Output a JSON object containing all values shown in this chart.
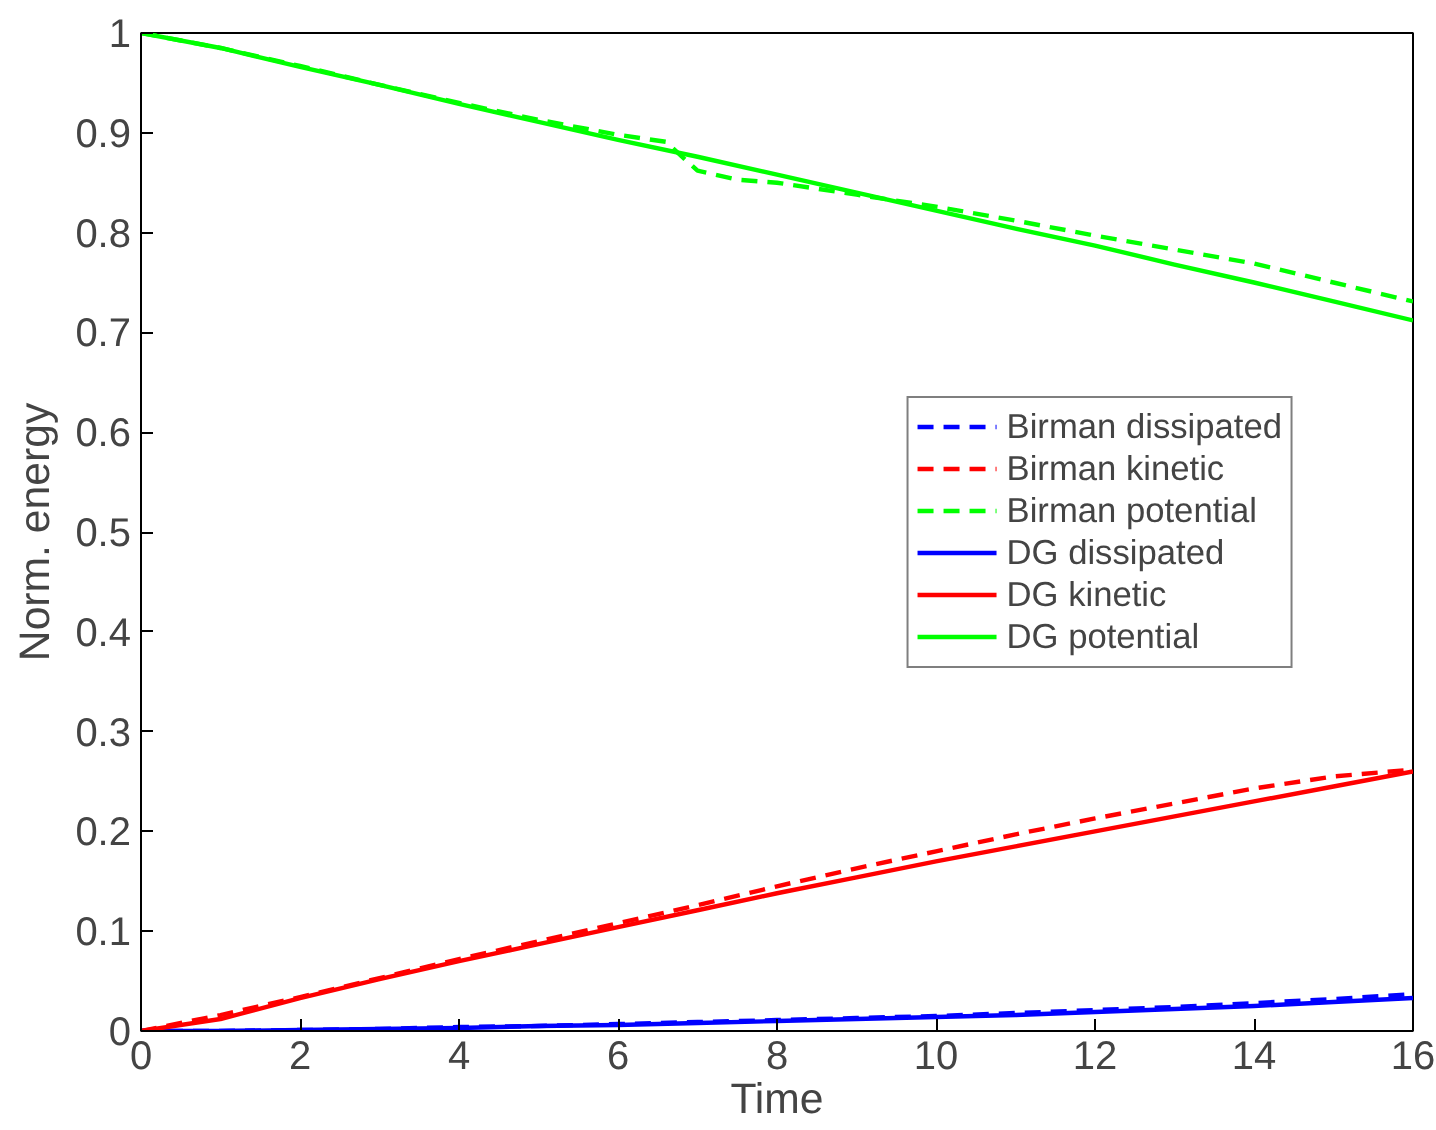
{
  "chart_data": {
    "type": "line",
    "xlabel": "Time",
    "ylabel": "Norm. energy",
    "xlim": [
      0,
      16
    ],
    "ylim": [
      0,
      1
    ],
    "xticks": [
      0,
      2,
      4,
      6,
      8,
      10,
      12,
      14,
      16
    ],
    "yticks": [
      0,
      0.1,
      0.2,
      0.3,
      0.4,
      0.5,
      0.6,
      0.7,
      0.8,
      0.9,
      1
    ],
    "grid": false,
    "legend": "right",
    "x": [
      0,
      1,
      2,
      3,
      4,
      5,
      6,
      7,
      8,
      9,
      10,
      11,
      12,
      13,
      14,
      15,
      16
    ],
    "series": [
      {
        "name": "Birman dissipated",
        "color": "#0000ff",
        "line_style": "dashed",
        "values": [
          0,
          0,
          0.001,
          0.002,
          0.004,
          0.005,
          0.007,
          0.009,
          0.011,
          0.013,
          0.015,
          0.018,
          0.021,
          0.024,
          0.028,
          0.032,
          0.037
        ]
      },
      {
        "name": "Birman kinetic",
        "color": "#ff0000",
        "line_style": "dashed",
        "values": [
          0,
          0.016,
          0.034,
          0.053,
          0.072,
          0.09,
          0.108,
          0.126,
          0.145,
          0.163,
          0.18,
          0.197,
          0.213,
          0.228,
          0.243,
          0.255,
          0.262
        ]
      },
      {
        "name": "Birman potential",
        "color": "#00ff00",
        "line_style": "dashed",
        "x": [
          0,
          1,
          2,
          3,
          4,
          5,
          6,
          6.6,
          7.0,
          7.5,
          8,
          9,
          10,
          11,
          12,
          13,
          14,
          15,
          16
        ],
        "values": [
          1,
          0.985,
          0.967,
          0.948,
          0.93,
          0.913,
          0.898,
          0.891,
          0.862,
          0.853,
          0.85,
          0.838,
          0.826,
          0.812,
          0.797,
          0.783,
          0.769,
          0.75,
          0.731
        ]
      },
      {
        "name": "DG dissipated",
        "color": "#0000ff",
        "line_style": "solid",
        "values": [
          0,
          0,
          0.001,
          0.002,
          0.003,
          0.005,
          0.006,
          0.008,
          0.01,
          0.012,
          0.014,
          0.016,
          0.019,
          0.022,
          0.025,
          0.029,
          0.033
        ]
      },
      {
        "name": "DG kinetic",
        "color": "#ff0000",
        "line_style": "solid",
        "values": [
          0,
          0.012,
          0.033,
          0.052,
          0.07,
          0.087,
          0.104,
          0.121,
          0.138,
          0.154,
          0.17,
          0.185,
          0.2,
          0.215,
          0.23,
          0.245,
          0.26
        ]
      },
      {
        "name": "DG potential",
        "color": "#00ff00",
        "line_style": "solid",
        "values": [
          1,
          0.985,
          0.966,
          0.948,
          0.929,
          0.911,
          0.893,
          0.876,
          0.858,
          0.84,
          0.822,
          0.804,
          0.787,
          0.768,
          0.75,
          0.731,
          0.712
        ]
      }
    ]
  }
}
